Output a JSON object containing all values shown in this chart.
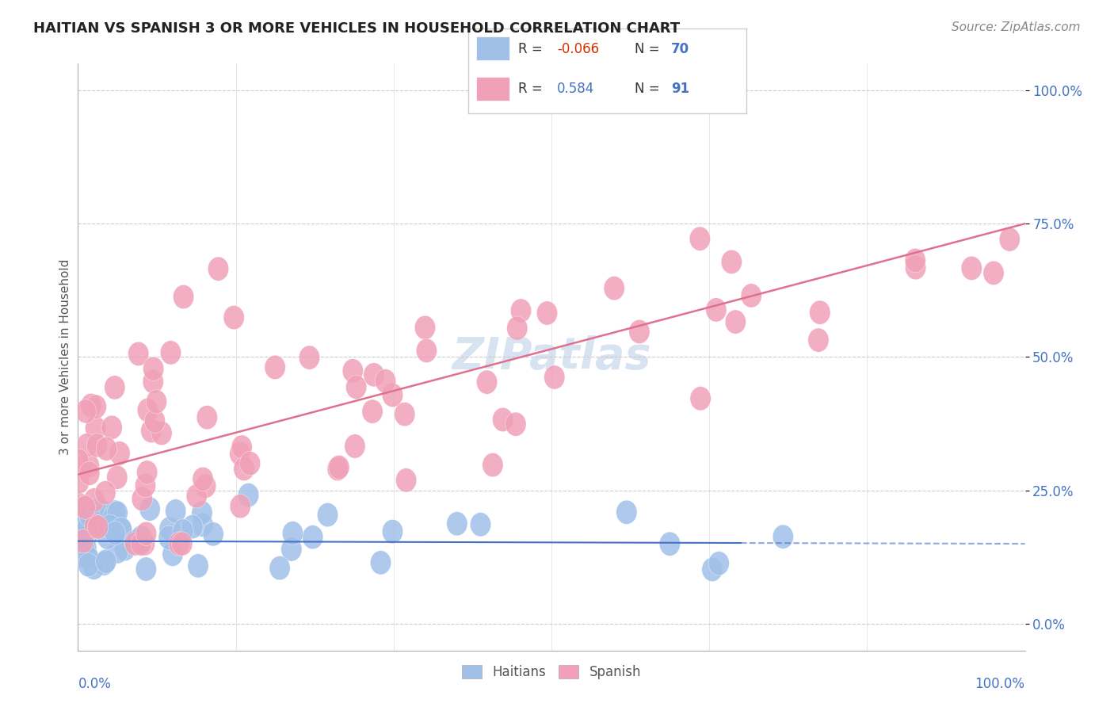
{
  "title": "HAITIAN VS SPANISH 3 OR MORE VEHICLES IN HOUSEHOLD CORRELATION CHART",
  "source": "Source: ZipAtlas.com",
  "ylabel": "3 or more Vehicles in Household",
  "haitian_color": "#a0c0e8",
  "spanish_color": "#f0a0b8",
  "haitian_line_color": "#4472c4",
  "spanish_line_color": "#e07090",
  "watermark_color": "#c8d8ec",
  "xlim": [
    0,
    100
  ],
  "ylim": [
    -5,
    105
  ],
  "yticks": [
    0,
    25,
    50,
    75,
    100
  ],
  "ytick_labels": [
    "0.0%",
    "25.0%",
    "50.0%",
    "75.0%",
    "100.0%"
  ],
  "title_fontsize": 13,
  "source_fontsize": 11,
  "tick_label_fontsize": 12,
  "axis_label_fontsize": 11,
  "legend_box_color": "#a0c0e8",
  "legend_box_color2": "#f0a0b8",
  "R1": "-0.066",
  "N1": "70",
  "R2": "0.584",
  "N2": "91"
}
